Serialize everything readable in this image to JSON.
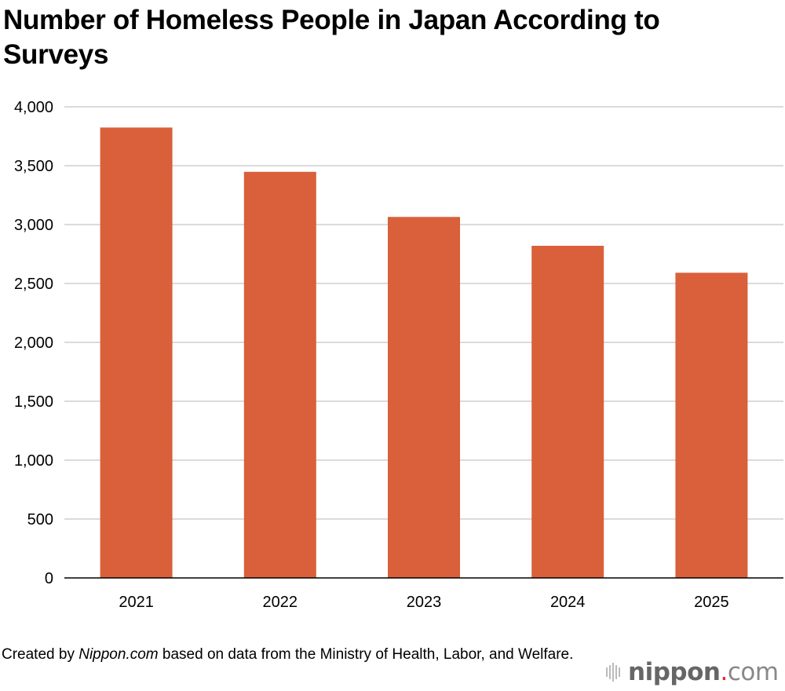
{
  "chart_data": {
    "type": "bar",
    "title": "Number of Homeless People in Japan According to Surveys",
    "categories": [
      "2021",
      "2022",
      "2023",
      "2024",
      "2025"
    ],
    "values": [
      3824,
      3448,
      3065,
      2820,
      2591
    ],
    "ylim": [
      0,
      4000
    ],
    "yticks": [
      "0",
      "500",
      "1,000",
      "1,500",
      "2,000",
      "2,500",
      "3,000",
      "3,500",
      "4,000"
    ],
    "xlabel": "",
    "ylabel": "",
    "grid": true,
    "bar_color": "#D9603A"
  },
  "footer": {
    "prefix": "Created by ",
    "source_name": "Nippon.com",
    "suffix": " based on data from the Ministry of Health, Labor, and Welfare."
  },
  "logo": {
    "text": "nippon.com"
  }
}
